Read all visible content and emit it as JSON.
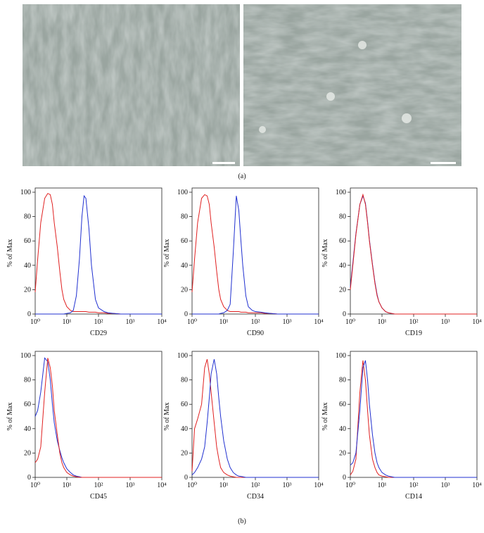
{
  "panel_labels": [
    "(a)",
    "(b)"
  ],
  "chart_data": [
    {
      "type": "line",
      "xlabel": "CD29",
      "ylabel": "% of Max",
      "xscale": "log",
      "xlim": [
        1,
        10000
      ],
      "ylim": [
        0,
        100
      ],
      "xticks": [
        {
          "value": 1,
          "label": "10⁰"
        },
        {
          "value": 10,
          "label": "10¹"
        },
        {
          "value": 100,
          "label": "10²"
        },
        {
          "value": 1000,
          "label": "10³"
        },
        {
          "value": 10000,
          "label": "10⁴"
        }
      ],
      "yticks": [
        0,
        20,
        40,
        60,
        80,
        100
      ],
      "x": [
        1,
        1.2,
        1.5,
        2,
        2.5,
        3,
        3.5,
        4,
        5,
        6,
        7,
        8,
        10,
        13,
        16,
        20,
        25,
        30,
        35,
        40,
        50,
        60,
        80,
        100,
        150,
        200,
        300,
        500,
        1000,
        10000
      ],
      "series": [
        {
          "color": "#e02020",
          "values": [
            18,
            45,
            75,
            95,
            99,
            98,
            90,
            75,
            55,
            35,
            20,
            12,
            6,
            3,
            2,
            2,
            2,
            2,
            2,
            2,
            1.5,
            1.5,
            1.5,
            1,
            1,
            0.5,
            0.5,
            0,
            0,
            0
          ]
        },
        {
          "color": "#2030d0",
          "values": [
            0,
            0,
            0,
            0,
            0,
            0,
            0,
            0,
            0,
            0,
            0,
            0,
            0.5,
            1,
            3,
            15,
            45,
            80,
            97,
            95,
            70,
            40,
            12,
            5,
            2,
            1,
            0.5,
            0,
            0,
            0
          ]
        }
      ]
    },
    {
      "type": "line",
      "xlabel": "CD90",
      "ylabel": "% of Max",
      "xscale": "log",
      "xlim": [
        1,
        10000
      ],
      "ylim": [
        0,
        100
      ],
      "xticks": [
        {
          "value": 1,
          "label": "10⁰"
        },
        {
          "value": 10,
          "label": "10¹"
        },
        {
          "value": 100,
          "label": "10²"
        },
        {
          "value": 1000,
          "label": "10³"
        },
        {
          "value": 10000,
          "label": "10⁴"
        }
      ],
      "yticks": [
        0,
        20,
        40,
        60,
        80,
        100
      ],
      "x": [
        1,
        1.2,
        1.5,
        2,
        2.5,
        3,
        3.5,
        4,
        5,
        6,
        7,
        8,
        10,
        13,
        16,
        20,
        25,
        30,
        35,
        40,
        50,
        60,
        80,
        100,
        150,
        200,
        300,
        500,
        1000,
        10000
      ],
      "series": [
        {
          "color": "#e02020",
          "values": [
            18,
            45,
            75,
            95,
            98,
            97,
            90,
            75,
            55,
            35,
            20,
            12,
            6,
            3,
            2,
            2,
            2,
            2,
            1.5,
            1.5,
            1.5,
            1,
            1,
            1,
            1,
            0.5,
            0.5,
            0,
            0,
            0
          ]
        },
        {
          "color": "#2030d0",
          "values": [
            0,
            0,
            0,
            0,
            0,
            0,
            0,
            0,
            0,
            0,
            0,
            0.5,
            1,
            3,
            8,
            50,
            97,
            85,
            60,
            40,
            15,
            6,
            3,
            2,
            1.5,
            1,
            0.5,
            0,
            0,
            0
          ]
        }
      ]
    },
    {
      "type": "line",
      "xlabel": "CD19",
      "ylabel": "% of Max",
      "xscale": "log",
      "xlim": [
        1,
        10000
      ],
      "ylim": [
        0,
        100
      ],
      "xticks": [
        {
          "value": 1,
          "label": "10⁰"
        },
        {
          "value": 10,
          "label": "10¹"
        },
        {
          "value": 100,
          "label": "10²"
        },
        {
          "value": 1000,
          "label": "10³"
        },
        {
          "value": 10000,
          "label": "10⁴"
        }
      ],
      "yticks": [
        0,
        20,
        40,
        60,
        80,
        100
      ],
      "x": [
        1,
        1.2,
        1.5,
        2,
        2.5,
        3,
        3.5,
        4,
        5,
        6,
        7,
        8,
        10,
        13,
        16,
        20,
        25,
        30,
        35,
        40,
        50,
        60,
        80,
        100,
        150,
        200,
        300,
        500,
        1000,
        10000
      ],
      "series": [
        {
          "color": "#2030d0",
          "values": [
            22,
            42,
            66,
            90,
            97,
            91,
            76,
            61,
            41,
            26,
            16,
            10,
            5,
            2,
            1,
            0.5,
            0,
            0,
            0,
            0,
            0,
            0,
            0,
            0,
            0,
            0,
            0,
            0,
            0,
            0
          ]
        },
        {
          "color": "#e02020",
          "values": [
            20,
            40,
            65,
            90,
            98,
            90,
            75,
            60,
            40,
            25,
            15,
            10,
            5,
            2,
            1,
            0.5,
            0,
            0,
            0,
            0,
            0,
            0,
            0,
            0,
            0,
            0,
            0,
            0,
            0,
            0
          ]
        }
      ]
    },
    {
      "type": "line",
      "xlabel": "CD45",
      "ylabel": "% of Max",
      "xscale": "log",
      "xlim": [
        1,
        10000
      ],
      "ylim": [
        0,
        100
      ],
      "xticks": [
        {
          "value": 1,
          "label": "10⁰"
        },
        {
          "value": 10,
          "label": "10¹"
        },
        {
          "value": 100,
          "label": "10²"
        },
        {
          "value": 1000,
          "label": "10³"
        },
        {
          "value": 10000,
          "label": "10⁴"
        }
      ],
      "yticks": [
        0,
        20,
        40,
        60,
        80,
        100
      ],
      "x": [
        1,
        1.2,
        1.5,
        2,
        2.5,
        3,
        3.5,
        4,
        5,
        6,
        7,
        8,
        10,
        13,
        16,
        20,
        25,
        30,
        35,
        40,
        50,
        60,
        80,
        100,
        150,
        200,
        300,
        500,
        1000,
        10000
      ],
      "series": [
        {
          "color": "#2030d0",
          "values": [
            50,
            55,
            70,
            98,
            95,
            80,
            60,
            45,
            30,
            22,
            16,
            12,
            7,
            4,
            2,
            1,
            0.5,
            0,
            0,
            0,
            0,
            0,
            0,
            0,
            0,
            0,
            0,
            0,
            0,
            0
          ]
        },
        {
          "color": "#e02020",
          "values": [
            12,
            15,
            25,
            70,
            98,
            90,
            75,
            55,
            35,
            20,
            12,
            8,
            4,
            2,
            1,
            0.5,
            0,
            0,
            0,
            0,
            0,
            0,
            0,
            0,
            0,
            0,
            0,
            0,
            0,
            0
          ]
        }
      ]
    },
    {
      "type": "line",
      "xlabel": "CD34",
      "ylabel": "% of Max",
      "xscale": "log",
      "xlim": [
        1,
        10000
      ],
      "ylim": [
        0,
        100
      ],
      "xticks": [
        {
          "value": 1,
          "label": "10⁰"
        },
        {
          "value": 10,
          "label": "10¹"
        },
        {
          "value": 100,
          "label": "10²"
        },
        {
          "value": 1000,
          "label": "10³"
        },
        {
          "value": 10000,
          "label": "10⁴"
        }
      ],
      "yticks": [
        0,
        20,
        40,
        60,
        80,
        100
      ],
      "x": [
        1,
        1.2,
        1.5,
        2,
        2.5,
        3,
        3.5,
        4,
        5,
        6,
        7,
        8,
        10,
        13,
        16,
        20,
        25,
        30,
        35,
        40,
        50,
        60,
        80,
        100,
        150,
        200,
        300,
        500,
        1000,
        10000
      ],
      "series": [
        {
          "color": "#e02020",
          "values": [
            5,
            40,
            48,
            60,
            90,
            97,
            85,
            70,
            45,
            25,
            15,
            8,
            4,
            2,
            1,
            0.5,
            0,
            0,
            0,
            0,
            0,
            0,
            0,
            0,
            0,
            0,
            0,
            0,
            0,
            0
          ]
        },
        {
          "color": "#2030d0",
          "values": [
            2,
            4,
            8,
            15,
            25,
            45,
            65,
            85,
            97,
            85,
            65,
            50,
            30,
            15,
            8,
            4,
            2,
            1,
            0.8,
            0.5,
            0,
            0,
            0,
            0,
            0,
            0,
            0,
            0,
            0,
            0
          ]
        }
      ]
    },
    {
      "type": "line",
      "xlabel": "CD14",
      "ylabel": "% of Max",
      "xscale": "log",
      "xlim": [
        1,
        10000
      ],
      "ylim": [
        0,
        100
      ],
      "xticks": [
        {
          "value": 1,
          "label": "10⁰"
        },
        {
          "value": 10,
          "label": "10¹"
        },
        {
          "value": 100,
          "label": "10²"
        },
        {
          "value": 1000,
          "label": "10³"
        },
        {
          "value": 10000,
          "label": "10⁴"
        }
      ],
      "yticks": [
        0,
        20,
        40,
        60,
        80,
        100
      ],
      "x": [
        1,
        1.2,
        1.5,
        2,
        2.5,
        3,
        3.5,
        4,
        5,
        6,
        7,
        8,
        10,
        13,
        16,
        20,
        25,
        30,
        35,
        40,
        50,
        60,
        80,
        100,
        150,
        200,
        300,
        500,
        1000,
        10000
      ],
      "series": [
        {
          "color": "#e02020",
          "values": [
            2,
            5,
            15,
            70,
            96,
            80,
            55,
            35,
            15,
            8,
            4,
            2,
            1,
            0.5,
            0,
            0,
            0,
            0,
            0,
            0,
            0,
            0,
            0,
            0,
            0,
            0,
            0,
            0,
            0,
            0
          ]
        },
        {
          "color": "#2030d0",
          "values": [
            10,
            12,
            20,
            55,
            90,
            96,
            80,
            60,
            35,
            20,
            12,
            8,
            4,
            2,
            1,
            0.5,
            0,
            0,
            0,
            0,
            0,
            0,
            0,
            0,
            0,
            0,
            0,
            0,
            0,
            0
          ]
        }
      ]
    }
  ]
}
